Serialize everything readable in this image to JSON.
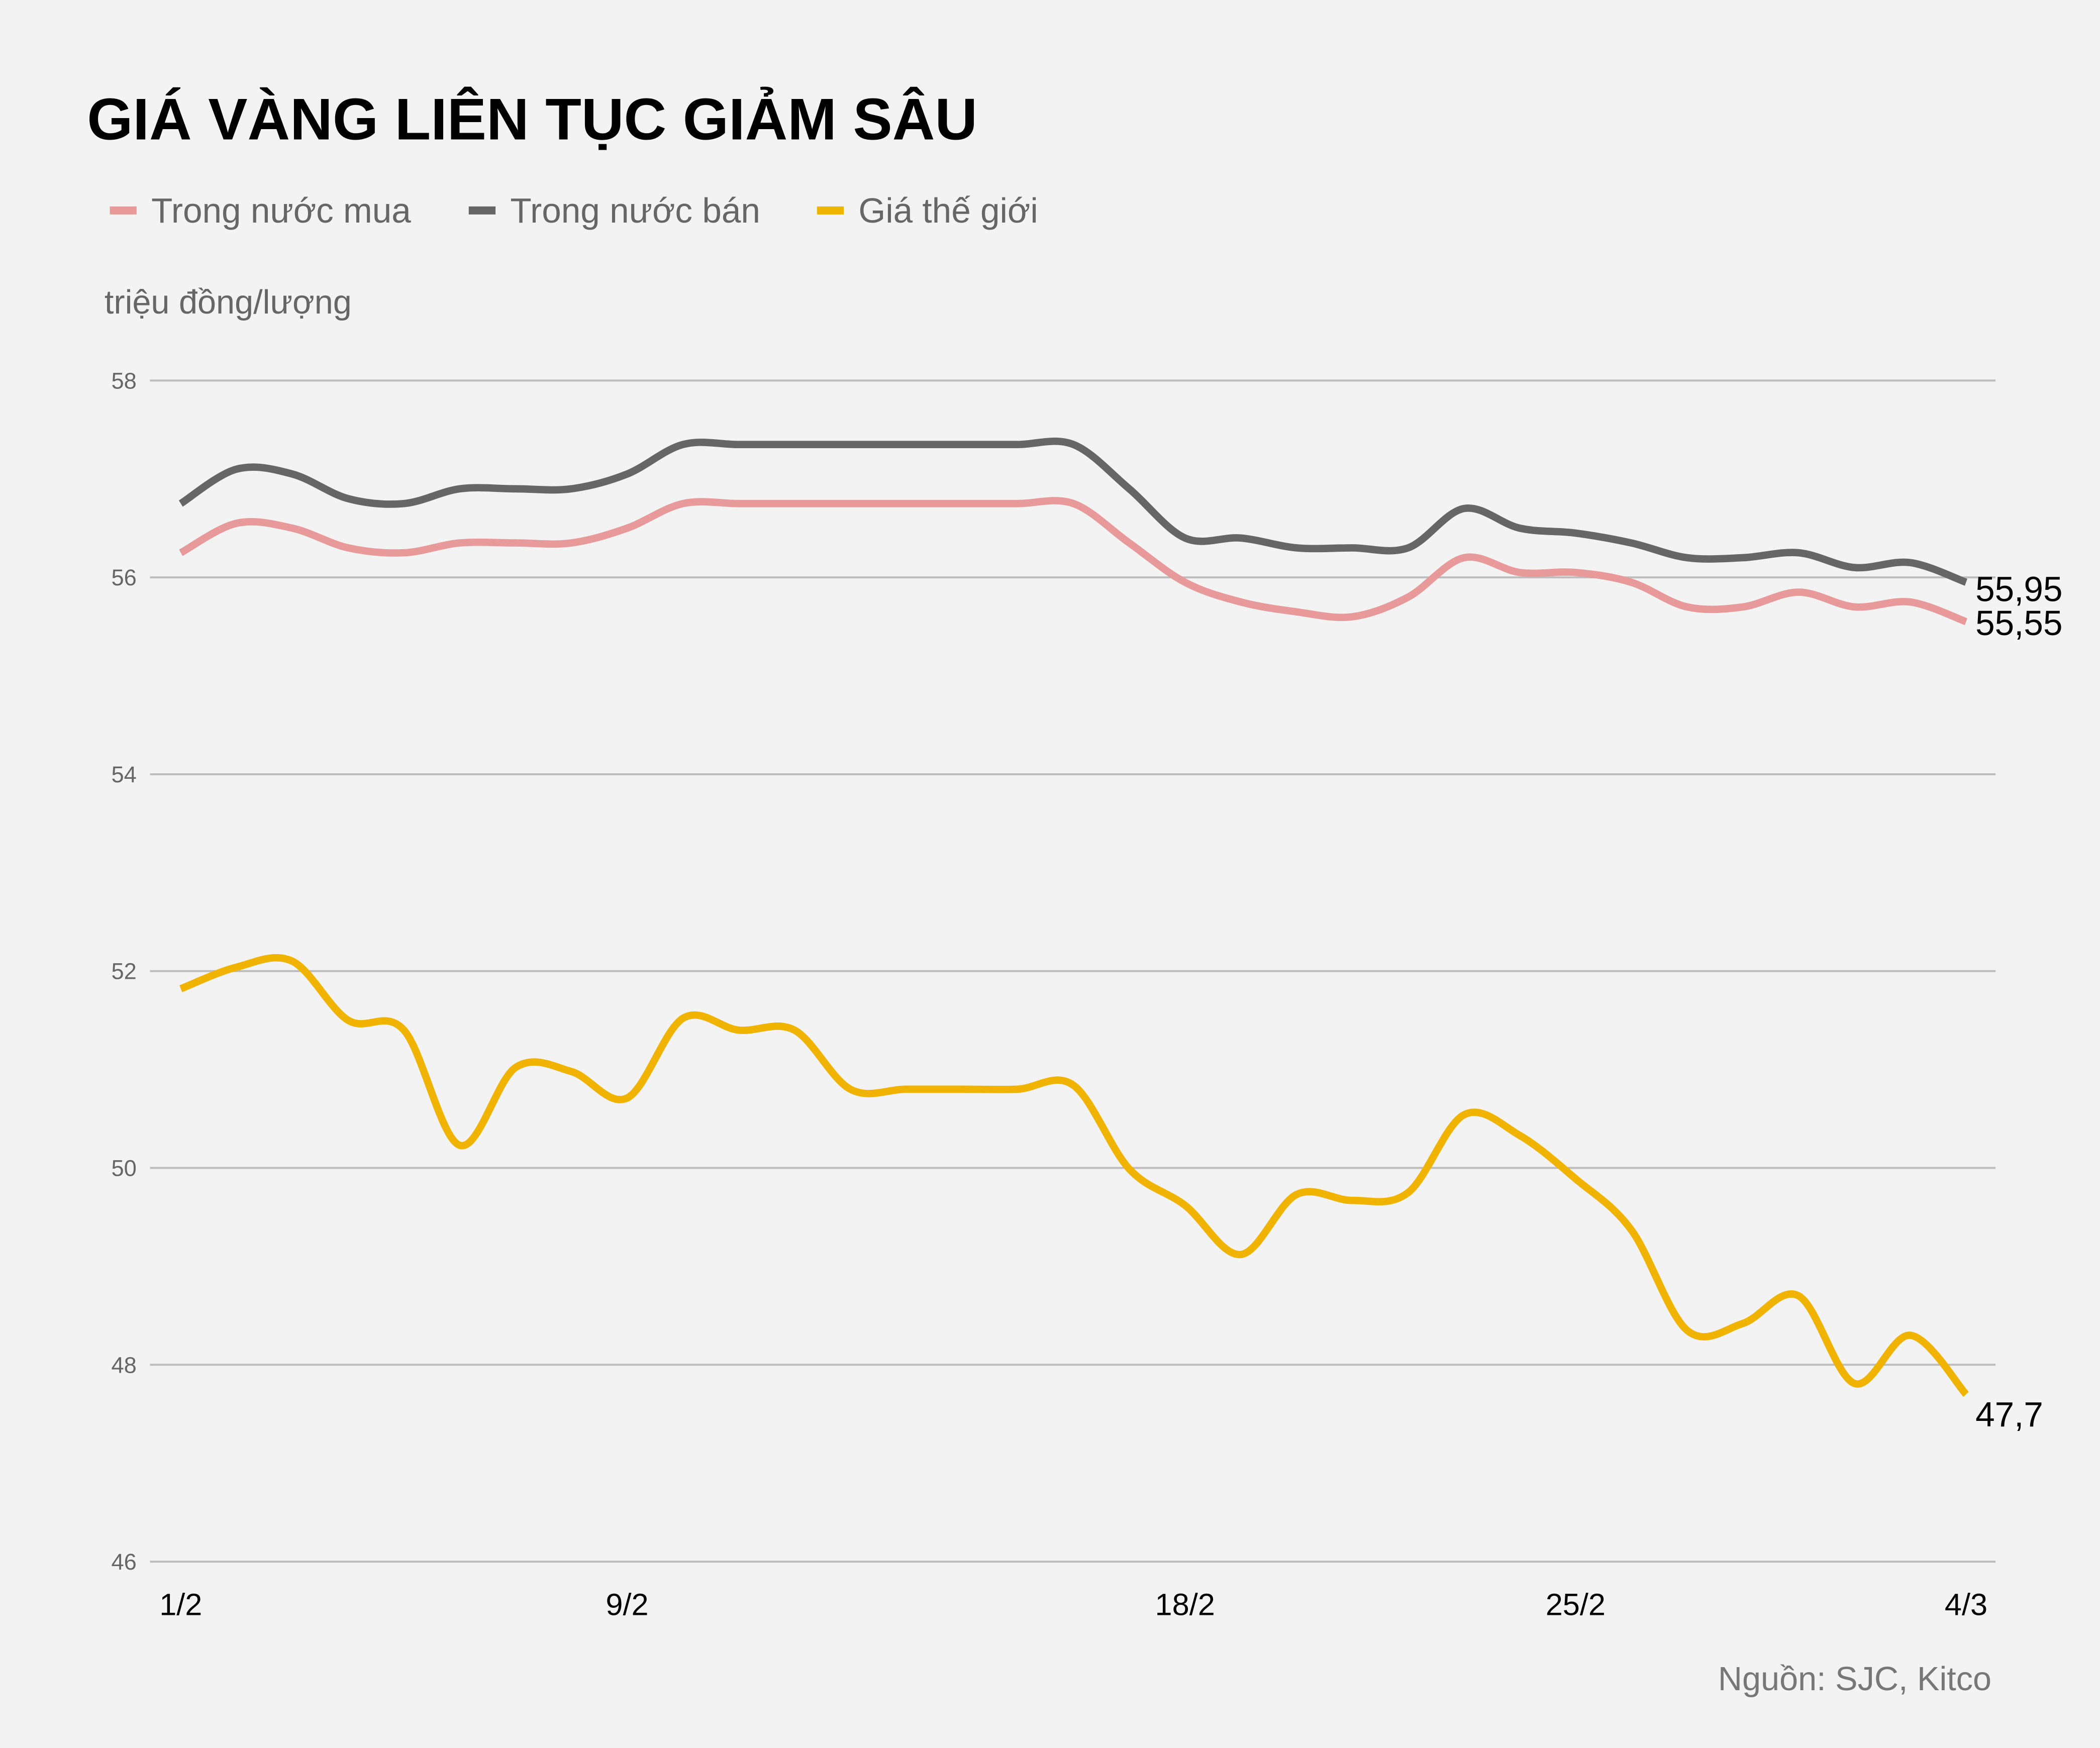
{
  "colors": {
    "mua": "#e89a9a",
    "ban": "#666666",
    "world": "#f0b400",
    "background": "#f3f3f3",
    "grid": "#bdbdbd"
  },
  "chart_data": {
    "type": "line",
    "title": "GIÁ VÀNG LIÊN TỤC GIẢM SÂU",
    "ylabel": "triệu đồng/lượng",
    "xlabel": "",
    "source": "Nguồn: SJC, Kitco",
    "ylim": [
      46,
      58
    ],
    "yticks": [
      "46",
      "48",
      "50",
      "52",
      "54",
      "56",
      "58"
    ],
    "grid": "horizontal",
    "legend_position": "top-left",
    "x_tick_labels": [
      {
        "index": 0,
        "label": "1/2"
      },
      {
        "index": 8,
        "label": "9/2"
      },
      {
        "index": 18,
        "label": "18/2"
      },
      {
        "index": 25,
        "label": "25/2"
      },
      {
        "index": 32,
        "label": "4/3"
      }
    ],
    "series": [
      {
        "key": "mua",
        "name": "Trong nước mua",
        "end_label": "55,55",
        "values": [
          56.25,
          56.55,
          56.5,
          56.3,
          56.25,
          56.35,
          56.35,
          56.35,
          56.5,
          56.75,
          56.75,
          56.75,
          56.75,
          56.75,
          56.75,
          56.75,
          56.75,
          56.35,
          55.95,
          55.75,
          55.65,
          55.6,
          55.8,
          56.2,
          56.05,
          56.05,
          55.95,
          55.7,
          55.7,
          55.85,
          55.7,
          55.75,
          55.55
        ]
      },
      {
        "key": "ban",
        "name": "Trong nước bán",
        "end_label": "55,95",
        "values": [
          56.75,
          57.1,
          57.05,
          56.8,
          56.75,
          56.9,
          56.9,
          56.9,
          57.05,
          57.35,
          57.35,
          57.35,
          57.35,
          57.35,
          57.35,
          57.35,
          57.35,
          56.9,
          56.4,
          56.4,
          56.3,
          56.3,
          56.3,
          56.7,
          56.5,
          56.45,
          56.35,
          56.2,
          56.2,
          56.25,
          56.1,
          56.15,
          55.95
        ]
      },
      {
        "key": "world",
        "name": "Giá thế giới",
        "end_label": "47,7",
        "values": [
          51.82,
          52.04,
          52.1,
          51.5,
          51.4,
          50.23,
          51.02,
          50.98,
          50.71,
          51.52,
          51.4,
          51.4,
          50.8,
          50.8,
          50.8,
          50.8,
          50.84,
          49.99,
          49.62,
          49.12,
          49.73,
          49.67,
          49.75,
          50.54,
          50.33,
          49.89,
          49.37,
          48.35,
          48.42,
          48.7,
          47.81,
          48.3,
          47.7
        ]
      }
    ]
  }
}
